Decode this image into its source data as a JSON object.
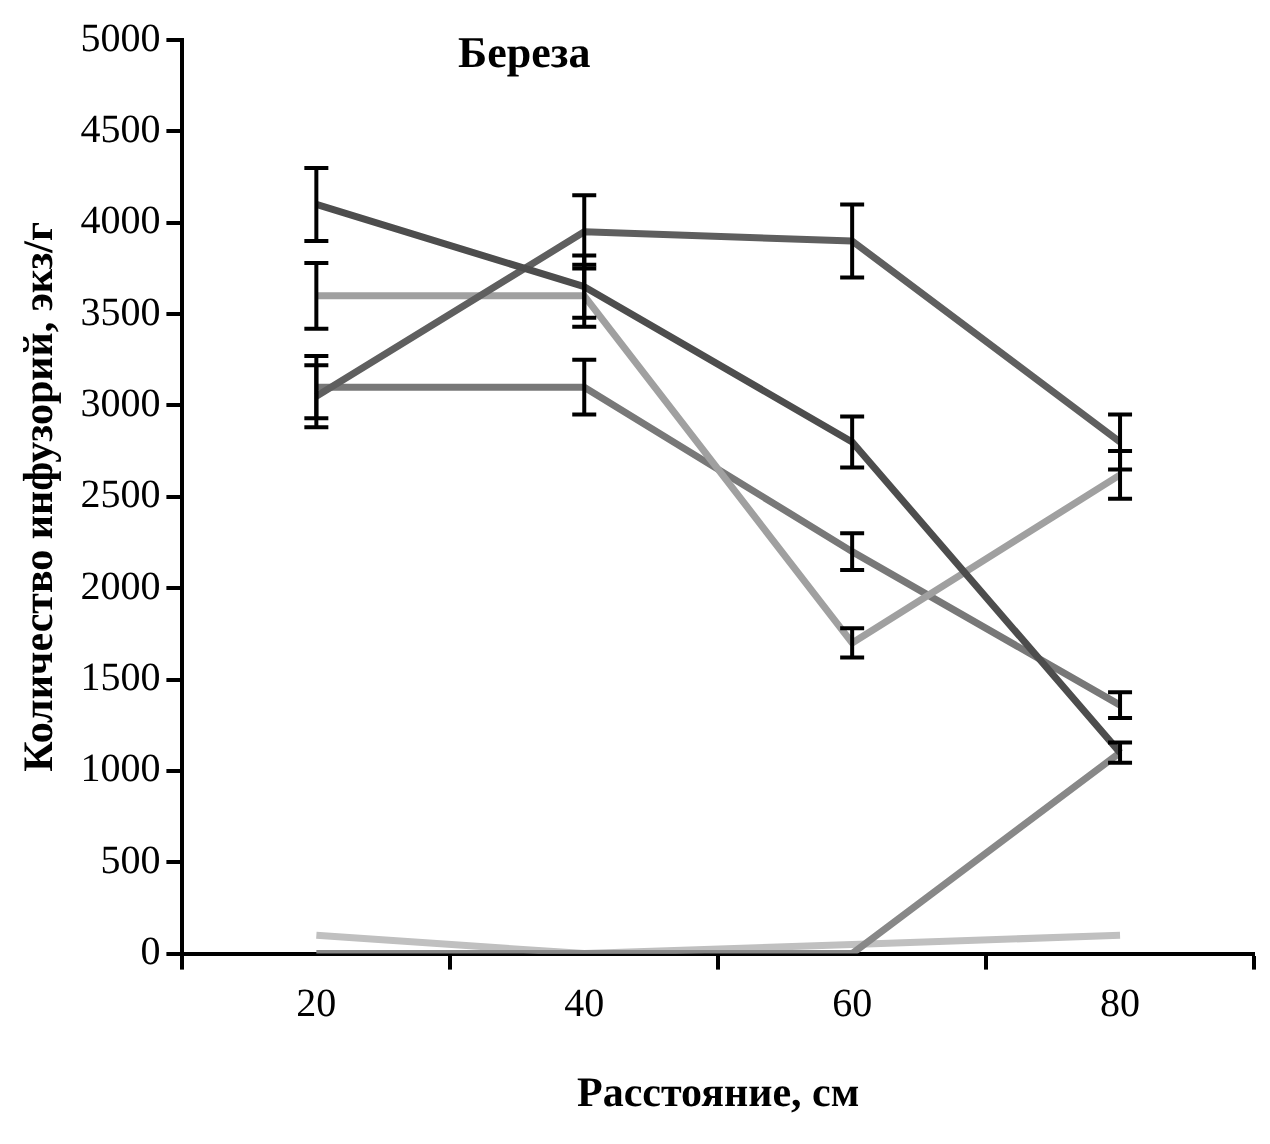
{
  "chart_data": {
    "type": "line",
    "title": "Береза",
    "xlabel": "Расстояние, см",
    "ylabel": "Количество инфузорий, экз/г",
    "categories": [
      "20",
      "40",
      "60",
      "80"
    ],
    "series": [
      {
        "color": "#4d4d4d",
        "values": [
          4100,
          3650,
          2800,
          1100
        ],
        "errors": [
          200,
          170,
          140,
          55
        ]
      },
      {
        "color": "#5f5f5f",
        "values": [
          3050,
          3950,
          3900,
          2800
        ],
        "errors": [
          170,
          200,
          200,
          150
        ]
      },
      {
        "color": "#a0a0a0",
        "values": [
          3600,
          3600,
          1700,
          2620
        ],
        "errors": [
          180,
          170,
          80,
          130
        ]
      },
      {
        "color": "#787878",
        "values": [
          3100,
          3100,
          2200,
          1360
        ],
        "errors": [
          170,
          150,
          100,
          70
        ]
      },
      {
        "color": "#888888",
        "values": [
          0,
          0,
          0,
          1100
        ]
      },
      {
        "color": "#c0c0c0",
        "values": [
          100,
          0,
          50,
          100
        ]
      }
    ],
    "ylim": [
      0,
      5000
    ],
    "yticks": [
      0,
      500,
      1000,
      1500,
      2000,
      2500,
      3000,
      3500,
      4000,
      4500,
      5000
    ],
    "grid": false,
    "legend": false,
    "line_style": "solid"
  }
}
